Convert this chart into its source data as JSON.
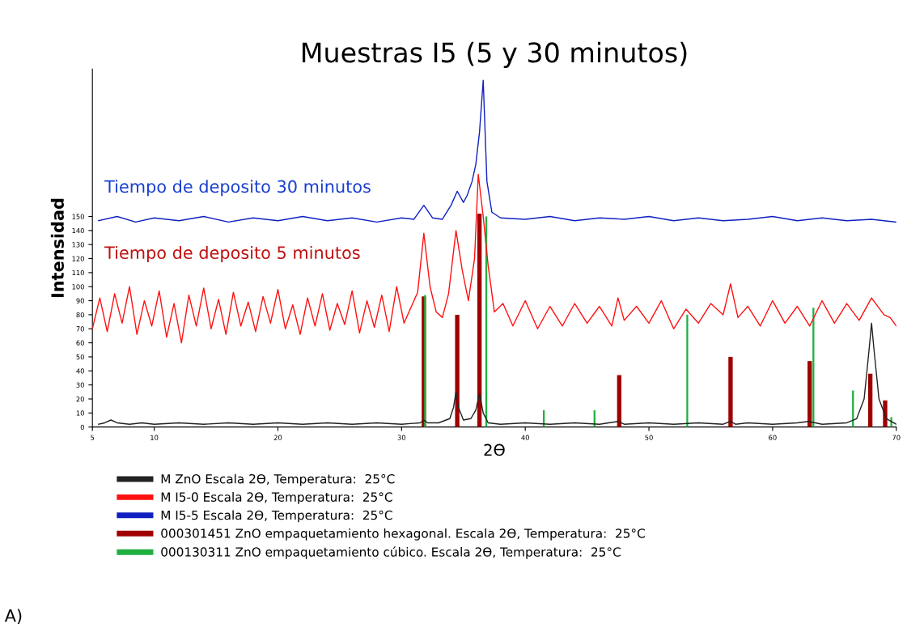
{
  "chart_data": {
    "type": "line",
    "title": "Muestras I5 (5 y 30 minutos)",
    "xlabel": "2ϴ",
    "ylabel": "Intensidad",
    "xlim": [
      5,
      70
    ],
    "ylim": [
      0,
      255
    ],
    "xticks": [
      5,
      10,
      20,
      30,
      40,
      50,
      60,
      70
    ],
    "yticks": [
      0,
      10,
      20,
      30,
      40,
      50,
      60,
      70,
      80,
      90,
      100,
      110,
      120,
      130,
      140,
      150
    ],
    "grid": false,
    "legend": "bottom",
    "series": [
      {
        "name": "M ZnO Escala 2ϴ, Temperatura:  25°C",
        "color": "#222222",
        "x": [
          5.5,
          6,
          6.5,
          7,
          8,
          9,
          10,
          12,
          14,
          16,
          18,
          20,
          22,
          24,
          26,
          28,
          30,
          31.5,
          31.8,
          32.1,
          33,
          33.9,
          34.2,
          34.4,
          34.6,
          35,
          35.6,
          36.0,
          36.3,
          36.6,
          37,
          38,
          40,
          42,
          44,
          46,
          47.5,
          48,
          50,
          52,
          54,
          56,
          56.6,
          57,
          58,
          60,
          62,
          62.9,
          64,
          66,
          66.8,
          67.4,
          67.8,
          68.0,
          68.2,
          68.6,
          69.2,
          70
        ],
        "values": [
          2,
          3,
          5,
          3,
          2,
          3,
          2,
          3,
          2,
          3,
          2,
          3,
          2,
          3,
          2,
          3,
          2,
          3,
          5,
          3,
          3,
          6,
          14,
          25,
          14,
          5,
          6,
          12,
          24,
          10,
          3,
          2,
          3,
          2,
          3,
          2,
          4,
          2,
          3,
          2,
          3,
          2,
          4,
          2,
          3,
          2,
          3,
          4,
          2,
          3,
          6,
          20,
          55,
          74,
          55,
          20,
          6,
          2
        ]
      },
      {
        "name": "M I5-0 Escala 2ϴ, Temperatura:  25°C",
        "color": "#ff1010",
        "x": [
          5,
          5.6,
          6.2,
          6.8,
          7.4,
          8,
          8.6,
          9.2,
          9.8,
          10.4,
          11,
          11.6,
          12.2,
          12.8,
          13.4,
          14,
          14.6,
          15.2,
          15.8,
          16.4,
          17,
          17.6,
          18.2,
          18.8,
          19.4,
          20,
          20.6,
          21.2,
          21.8,
          22.4,
          23,
          23.6,
          24.2,
          24.8,
          25.4,
          26,
          26.6,
          27.2,
          27.8,
          28.4,
          29,
          29.6,
          30.2,
          30.8,
          31.3,
          31.8,
          32.3,
          32.8,
          33.3,
          33.8,
          34.4,
          34.9,
          35.4,
          35.9,
          36.2,
          36.6,
          37.0,
          37.5,
          38.2,
          39,
          40,
          41,
          42,
          43,
          44,
          45,
          46,
          47,
          47.5,
          48,
          49,
          50,
          51,
          52,
          53,
          54,
          55,
          56,
          56.6,
          57.2,
          58,
          59,
          60,
          61,
          62,
          63,
          64,
          65,
          66,
          67,
          68,
          69,
          69.5,
          70
        ],
        "values": [
          70,
          92,
          68,
          95,
          74,
          100,
          66,
          90,
          72,
          97,
          64,
          88,
          60,
          94,
          72,
          99,
          70,
          91,
          66,
          96,
          72,
          89,
          68,
          93,
          74,
          98,
          70,
          87,
          66,
          92,
          72,
          95,
          69,
          88,
          73,
          97,
          67,
          90,
          71,
          94,
          68,
          100,
          74,
          86,
          96,
          138,
          100,
          82,
          78,
          95,
          140,
          112,
          90,
          120,
          180,
          150,
          115,
          82,
          88,
          72,
          90,
          70,
          86,
          72,
          88,
          74,
          86,
          72,
          92,
          76,
          86,
          74,
          90,
          70,
          84,
          74,
          88,
          80,
          102,
          78,
          86,
          72,
          90,
          74,
          86,
          72,
          90,
          74,
          88,
          76,
          92,
          80,
          78,
          72
        ]
      },
      {
        "name": "M I5-5 Escala 2ϴ, Temperatura:  25°C",
        "color": "#1020c0",
        "x": [
          5.5,
          7,
          8.5,
          10,
          12,
          14,
          16,
          18,
          20,
          22,
          24,
          26,
          28,
          30,
          31,
          31.8,
          32.5,
          33.3,
          34,
          34.5,
          35.0,
          35.3,
          35.7,
          36.0,
          36.3,
          36.6,
          36.9,
          37.3,
          38,
          40,
          42,
          44,
          46,
          48,
          50,
          52,
          54,
          56,
          58,
          60,
          62,
          64,
          66,
          68,
          70
        ],
        "values": [
          147,
          150,
          146,
          149,
          147,
          150,
          146,
          149,
          147,
          150,
          147,
          149,
          146,
          149,
          148,
          158,
          149,
          148,
          158,
          168,
          160,
          165,
          175,
          187,
          210,
          247,
          175,
          153,
          149,
          148,
          150,
          147,
          149,
          148,
          150,
          147,
          149,
          147,
          148,
          150,
          147,
          149,
          147,
          148,
          146
        ]
      },
      {
        "name": "000301451 ZnO empaquetamiento hexagonal. Escala 2ϴ, Temperatura:  25°C",
        "color": "#a00000",
        "type": "bar",
        "x": [
          31.8,
          34.5,
          36.3,
          47.6,
          56.6,
          63.0,
          67.9,
          69.1
        ],
        "values": [
          93,
          80,
          152,
          37,
          50,
          47,
          38,
          19
        ]
      },
      {
        "name": "000130311 ZnO empaquetamiento cúbico. Escala 2ϴ, Temperatura:  25°C",
        "color": "#20b040",
        "type": "bar",
        "x": [
          31.9,
          36.85,
          41.5,
          45.6,
          53.1,
          63.3,
          66.5,
          69.6
        ],
        "values": [
          94,
          150,
          12,
          12,
          80,
          85,
          26,
          7
        ]
      }
    ],
    "annotations": [
      "Tiempo de deposito 30 minutos",
      "Tiempo de deposito 5 minutos",
      "A)"
    ]
  }
}
